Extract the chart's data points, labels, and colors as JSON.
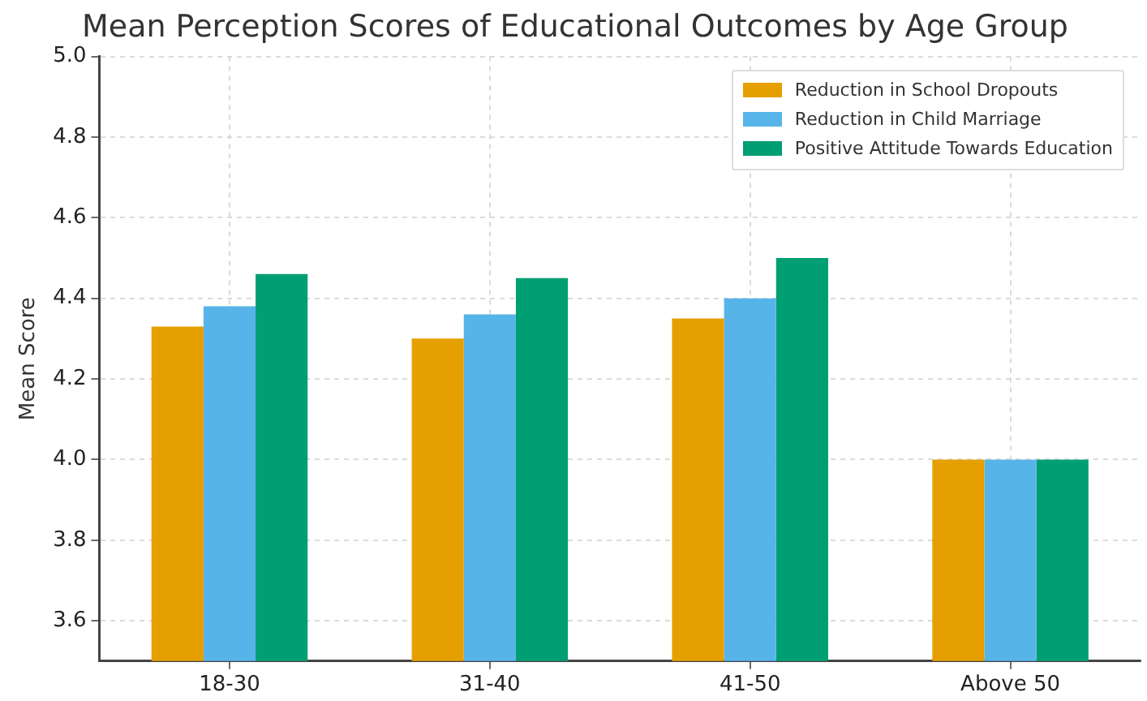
{
  "chart_data": {
    "type": "bar",
    "title": "Mean Perception Scores of Educational Outcomes by Age Group",
    "ylabel": "Mean Score",
    "categories": [
      "18-30",
      "31-40",
      "41-50",
      "Above 50"
    ],
    "series": [
      {
        "name": "Reduction in School Dropouts",
        "color": "#e69f00",
        "values": [
          4.33,
          4.3,
          4.35,
          4.0
        ]
      },
      {
        "name": "Reduction in Child Marriage",
        "color": "#56b4e9",
        "values": [
          4.38,
          4.36,
          4.4,
          4.0
        ]
      },
      {
        "name": "Positive Attitude Towards Education",
        "color": "#009e73",
        "values": [
          4.46,
          4.45,
          4.5,
          4.0
        ]
      }
    ],
    "ylim": [
      3.5,
      5.0
    ],
    "yticks": [
      3.6,
      3.8,
      {
        "value": 4,
        "label": "4.0"
      },
      4.2,
      4.4,
      4.6,
      4.8,
      {
        "value": 5,
        "label": "5.0"
      }
    ],
    "grid": true,
    "legend": "top right"
  }
}
